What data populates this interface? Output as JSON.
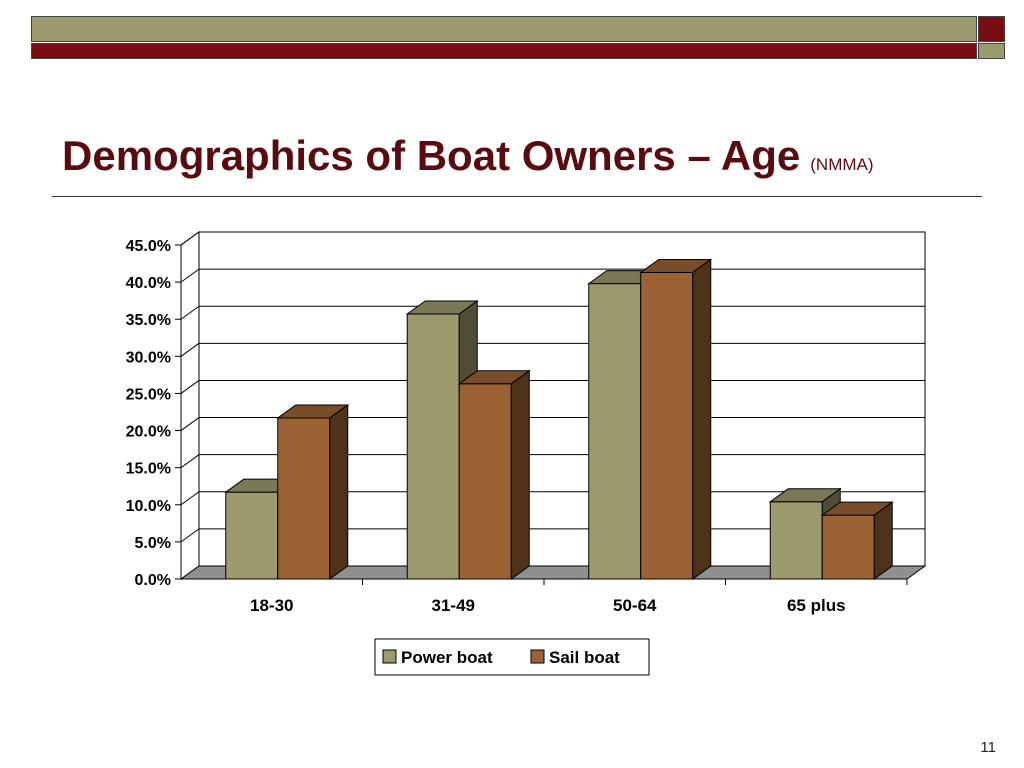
{
  "slide": {
    "title": "Demographics of Boat Owners – Age",
    "title_source": "(NMMA)",
    "page_number": "11"
  },
  "colors": {
    "band_olive": "#9d9a6d",
    "band_red": "#7a0d12",
    "title": "#5a0b0f"
  },
  "chart_data": {
    "type": "bar",
    "style": "3d-clustered-column",
    "title": "",
    "xlabel": "",
    "ylabel": "",
    "categories": [
      "18-30",
      "31-49",
      "50-64",
      "65 plus"
    ],
    "series": [
      {
        "name": "Power boat",
        "values": [
          11.7,
          35.7,
          39.8,
          10.4
        ],
        "color": "#9d9a6d"
      },
      {
        "name": "Sail boat",
        "values": [
          21.7,
          26.3,
          41.3,
          8.6
        ],
        "color": "#9b6334"
      }
    ],
    "ylim": [
      0,
      45
    ],
    "y_ticks": [
      "0.0%",
      "5.0%",
      "10.0%",
      "15.0%",
      "20.0%",
      "25.0%",
      "30.0%",
      "35.0%",
      "40.0%",
      "45.0%"
    ],
    "grid": true,
    "legend_position": "bottom"
  }
}
